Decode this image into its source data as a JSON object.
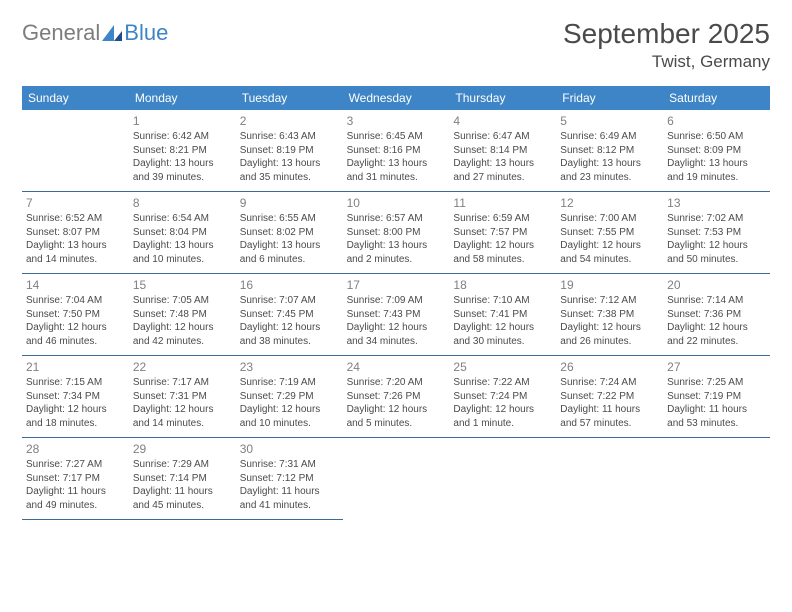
{
  "logo": {
    "general": "General",
    "blue": "Blue"
  },
  "title": "September 2025",
  "location": "Twist, Germany",
  "colors": {
    "header_bg": "#3d85c6",
    "header_text": "#ffffff",
    "rule": "#3d6b99",
    "body_text": "#4b4b4b",
    "daynum": "#808080",
    "title_text": "#4a4a4a",
    "logo_gray": "#7d7d7d",
    "logo_blue": "#3d85c6"
  },
  "weekdays": [
    "Sunday",
    "Monday",
    "Tuesday",
    "Wednesday",
    "Thursday",
    "Friday",
    "Saturday"
  ],
  "days": [
    {
      "n": "1",
      "sr": "Sunrise: 6:42 AM",
      "ss": "Sunset: 8:21 PM",
      "dl1": "Daylight: 13 hours",
      "dl2": "and 39 minutes."
    },
    {
      "n": "2",
      "sr": "Sunrise: 6:43 AM",
      "ss": "Sunset: 8:19 PM",
      "dl1": "Daylight: 13 hours",
      "dl2": "and 35 minutes."
    },
    {
      "n": "3",
      "sr": "Sunrise: 6:45 AM",
      "ss": "Sunset: 8:16 PM",
      "dl1": "Daylight: 13 hours",
      "dl2": "and 31 minutes."
    },
    {
      "n": "4",
      "sr": "Sunrise: 6:47 AM",
      "ss": "Sunset: 8:14 PM",
      "dl1": "Daylight: 13 hours",
      "dl2": "and 27 minutes."
    },
    {
      "n": "5",
      "sr": "Sunrise: 6:49 AM",
      "ss": "Sunset: 8:12 PM",
      "dl1": "Daylight: 13 hours",
      "dl2": "and 23 minutes."
    },
    {
      "n": "6",
      "sr": "Sunrise: 6:50 AM",
      "ss": "Sunset: 8:09 PM",
      "dl1": "Daylight: 13 hours",
      "dl2": "and 19 minutes."
    },
    {
      "n": "7",
      "sr": "Sunrise: 6:52 AM",
      "ss": "Sunset: 8:07 PM",
      "dl1": "Daylight: 13 hours",
      "dl2": "and 14 minutes."
    },
    {
      "n": "8",
      "sr": "Sunrise: 6:54 AM",
      "ss": "Sunset: 8:04 PM",
      "dl1": "Daylight: 13 hours",
      "dl2": "and 10 minutes."
    },
    {
      "n": "9",
      "sr": "Sunrise: 6:55 AM",
      "ss": "Sunset: 8:02 PM",
      "dl1": "Daylight: 13 hours",
      "dl2": "and 6 minutes."
    },
    {
      "n": "10",
      "sr": "Sunrise: 6:57 AM",
      "ss": "Sunset: 8:00 PM",
      "dl1": "Daylight: 13 hours",
      "dl2": "and 2 minutes."
    },
    {
      "n": "11",
      "sr": "Sunrise: 6:59 AM",
      "ss": "Sunset: 7:57 PM",
      "dl1": "Daylight: 12 hours",
      "dl2": "and 58 minutes."
    },
    {
      "n": "12",
      "sr": "Sunrise: 7:00 AM",
      "ss": "Sunset: 7:55 PM",
      "dl1": "Daylight: 12 hours",
      "dl2": "and 54 minutes."
    },
    {
      "n": "13",
      "sr": "Sunrise: 7:02 AM",
      "ss": "Sunset: 7:53 PM",
      "dl1": "Daylight: 12 hours",
      "dl2": "and 50 minutes."
    },
    {
      "n": "14",
      "sr": "Sunrise: 7:04 AM",
      "ss": "Sunset: 7:50 PM",
      "dl1": "Daylight: 12 hours",
      "dl2": "and 46 minutes."
    },
    {
      "n": "15",
      "sr": "Sunrise: 7:05 AM",
      "ss": "Sunset: 7:48 PM",
      "dl1": "Daylight: 12 hours",
      "dl2": "and 42 minutes."
    },
    {
      "n": "16",
      "sr": "Sunrise: 7:07 AM",
      "ss": "Sunset: 7:45 PM",
      "dl1": "Daylight: 12 hours",
      "dl2": "and 38 minutes."
    },
    {
      "n": "17",
      "sr": "Sunrise: 7:09 AM",
      "ss": "Sunset: 7:43 PM",
      "dl1": "Daylight: 12 hours",
      "dl2": "and 34 minutes."
    },
    {
      "n": "18",
      "sr": "Sunrise: 7:10 AM",
      "ss": "Sunset: 7:41 PM",
      "dl1": "Daylight: 12 hours",
      "dl2": "and 30 minutes."
    },
    {
      "n": "19",
      "sr": "Sunrise: 7:12 AM",
      "ss": "Sunset: 7:38 PM",
      "dl1": "Daylight: 12 hours",
      "dl2": "and 26 minutes."
    },
    {
      "n": "20",
      "sr": "Sunrise: 7:14 AM",
      "ss": "Sunset: 7:36 PM",
      "dl1": "Daylight: 12 hours",
      "dl2": "and 22 minutes."
    },
    {
      "n": "21",
      "sr": "Sunrise: 7:15 AM",
      "ss": "Sunset: 7:34 PM",
      "dl1": "Daylight: 12 hours",
      "dl2": "and 18 minutes."
    },
    {
      "n": "22",
      "sr": "Sunrise: 7:17 AM",
      "ss": "Sunset: 7:31 PM",
      "dl1": "Daylight: 12 hours",
      "dl2": "and 14 minutes."
    },
    {
      "n": "23",
      "sr": "Sunrise: 7:19 AM",
      "ss": "Sunset: 7:29 PM",
      "dl1": "Daylight: 12 hours",
      "dl2": "and 10 minutes."
    },
    {
      "n": "24",
      "sr": "Sunrise: 7:20 AM",
      "ss": "Sunset: 7:26 PM",
      "dl1": "Daylight: 12 hours",
      "dl2": "and 5 minutes."
    },
    {
      "n": "25",
      "sr": "Sunrise: 7:22 AM",
      "ss": "Sunset: 7:24 PM",
      "dl1": "Daylight: 12 hours",
      "dl2": "and 1 minute."
    },
    {
      "n": "26",
      "sr": "Sunrise: 7:24 AM",
      "ss": "Sunset: 7:22 PM",
      "dl1": "Daylight: 11 hours",
      "dl2": "and 57 minutes."
    },
    {
      "n": "27",
      "sr": "Sunrise: 7:25 AM",
      "ss": "Sunset: 7:19 PM",
      "dl1": "Daylight: 11 hours",
      "dl2": "and 53 minutes."
    },
    {
      "n": "28",
      "sr": "Sunrise: 7:27 AM",
      "ss": "Sunset: 7:17 PM",
      "dl1": "Daylight: 11 hours",
      "dl2": "and 49 minutes."
    },
    {
      "n": "29",
      "sr": "Sunrise: 7:29 AM",
      "ss": "Sunset: 7:14 PM",
      "dl1": "Daylight: 11 hours",
      "dl2": "and 45 minutes."
    },
    {
      "n": "30",
      "sr": "Sunrise: 7:31 AM",
      "ss": "Sunset: 7:12 PM",
      "dl1": "Daylight: 11 hours",
      "dl2": "and 41 minutes."
    }
  ],
  "layout": {
    "first_weekday_offset": 1,
    "total_cells": 35
  }
}
